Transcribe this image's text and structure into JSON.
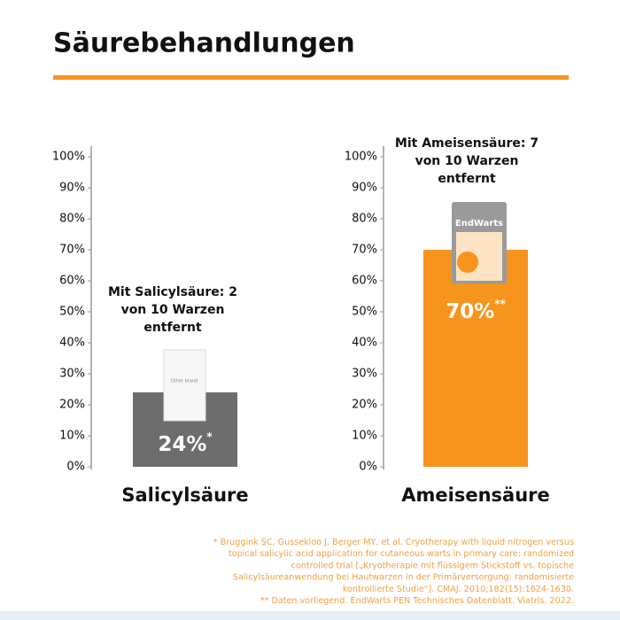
{
  "title": "Säurebehandlungen",
  "chart_data": [
    {
      "type": "bar",
      "categories": [
        "Salicylsäure"
      ],
      "values": [
        24
      ],
      "value_labels": [
        "24%"
      ],
      "value_label_notes": [
        "*"
      ],
      "color": "#6d6d6d",
      "annotation": [
        "Mit Salicylsäure: 2",
        "von 10 Warzen",
        "entfernt"
      ],
      "product_label": "Other brand",
      "ylim": [
        0,
        100
      ],
      "yticks": [
        {
          "value": 0,
          "label": "0%"
        },
        {
          "value": 10,
          "label": "10%"
        },
        {
          "value": 20,
          "label": "20%"
        },
        {
          "value": 30,
          "label": "30%"
        },
        {
          "value": 40,
          "label": "40%"
        },
        {
          "value": 50,
          "label": "50%"
        },
        {
          "value": 60,
          "label": "60%"
        },
        {
          "value": 70,
          "label": "70%"
        },
        {
          "value": 80,
          "label": "80%"
        },
        {
          "value": 90,
          "label": "90%"
        },
        {
          "value": 100,
          "label": "100%"
        }
      ]
    },
    {
      "type": "bar",
      "categories": [
        "Ameisensäure"
      ],
      "values": [
        70
      ],
      "value_labels": [
        "70%"
      ],
      "value_label_notes": [
        "**"
      ],
      "color": "#f7941d",
      "annotation": [
        "Mit Ameisensäure: 7",
        "von 10 Warzen",
        "entfernt"
      ],
      "product_label": "EndWarts",
      "ylim": [
        0,
        100
      ],
      "yticks": [
        {
          "value": 0,
          "label": "0%"
        },
        {
          "value": 10,
          "label": "10%"
        },
        {
          "value": 20,
          "label": "20%"
        },
        {
          "value": 30,
          "label": "30%"
        },
        {
          "value": 40,
          "label": "40%"
        },
        {
          "value": 50,
          "label": "50%"
        },
        {
          "value": 60,
          "label": "60%"
        },
        {
          "value": 70,
          "label": "70%"
        },
        {
          "value": 80,
          "label": "80%"
        },
        {
          "value": 90,
          "label": "90%"
        },
        {
          "value": 100,
          "label": "100%"
        }
      ]
    }
  ],
  "footnotes": [
    "* Bruggink SC, Gussekloo J, Berger MY, et al. Cryotherapy with liquid nitrogen versus",
    "topical salicylic acid application for cutaneous warts in primary care: randomized",
    "controlled trial [„Kryotherapie mit flüssigem Stickstoff vs. topische",
    "Salicylsäureanwendung bei Hautwarzen in der Primärversorgung: randomisierte",
    "kontrollierte Studie“]. CMAJ. 2010;182(15):1624-1630.",
    "** Daten vorliegend. EndWarts PEN Technisches Datenblatt. Viatris. 2022."
  ]
}
